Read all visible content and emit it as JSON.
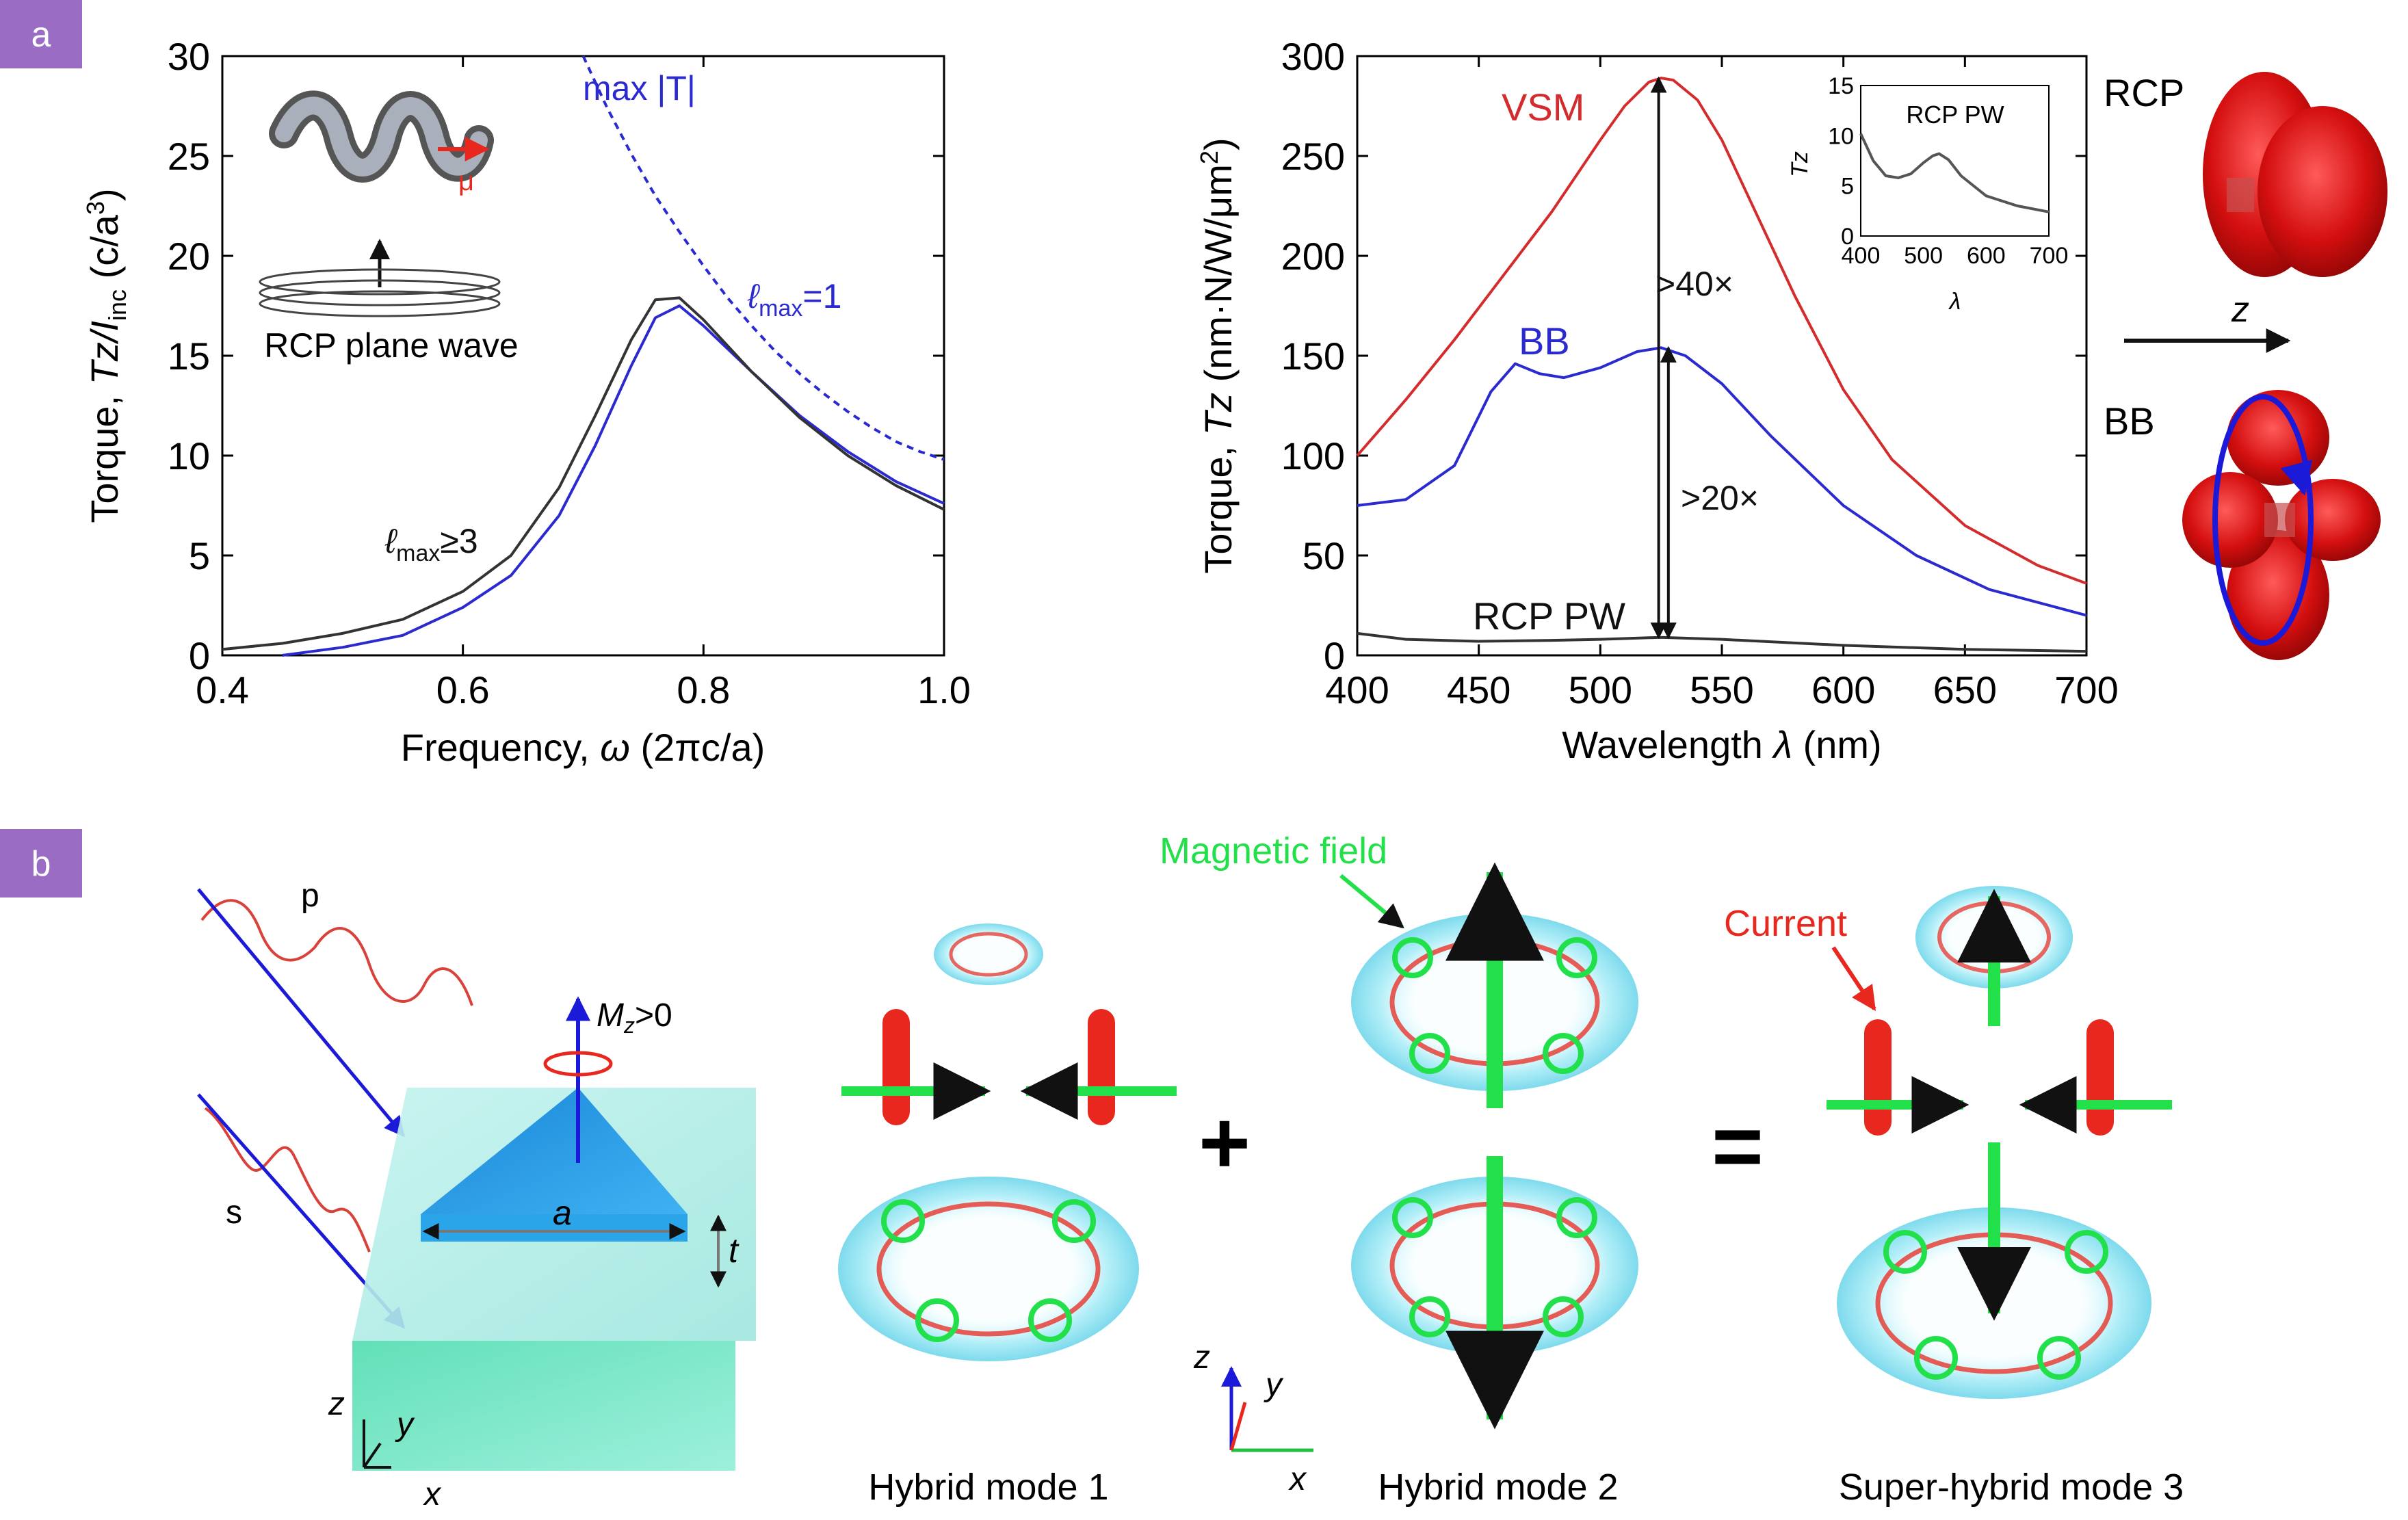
{
  "panels": {
    "a_label": "a",
    "b_label": "b",
    "badge_color": "#9b6cc4"
  },
  "chart_data": [
    {
      "type": "line",
      "xlabel_prefix": "Frequency, ",
      "xlabel_symbol": "ω",
      "xlabel_suffix": " (2πc/a)",
      "ylabel_prefix": "Torque, ",
      "ylabel_symbol": "Tz/I",
      "ylabel_sub": "inc",
      "ylabel_suffix": " (c/a",
      "ylabel_sup": "3",
      "ylabel_close": ")",
      "xlim": [
        0.4,
        1.0
      ],
      "ylim": [
        0,
        30
      ],
      "xticks": [
        0.4,
        0.6,
        0.8,
        1.0
      ],
      "xtick_labels": [
        "0.4",
        "0.6",
        "0.8",
        "1.0"
      ],
      "yticks": [
        0,
        5,
        10,
        15,
        20,
        25,
        30
      ],
      "ytick_labels": [
        "0",
        "5",
        "10",
        "15",
        "20",
        "25",
        "30"
      ],
      "grid": false,
      "series": [
        {
          "name": "max |T|",
          "style": "dashed",
          "color": "#2a2ad0",
          "x": [
            0.7,
            0.72,
            0.74,
            0.76,
            0.78,
            0.8,
            0.82,
            0.84,
            0.86,
            0.88,
            0.9,
            0.92,
            0.94,
            0.96,
            0.98,
            1.0
          ],
          "y": [
            30.0,
            27.4,
            25.1,
            23.0,
            21.2,
            19.5,
            17.9,
            16.5,
            15.2,
            14.1,
            13.1,
            12.2,
            11.4,
            10.7,
            10.2,
            9.8
          ]
        },
        {
          "name": "ℓmax=1",
          "style": "solid",
          "color": "#2a2ad0",
          "x": [
            0.45,
            0.5,
            0.55,
            0.6,
            0.64,
            0.68,
            0.71,
            0.74,
            0.76,
            0.78,
            0.8,
            0.84,
            0.88,
            0.92,
            0.96,
            1.0
          ],
          "y": [
            0.0,
            0.4,
            1.0,
            2.4,
            4.0,
            7.0,
            10.5,
            14.5,
            16.9,
            17.5,
            16.5,
            14.2,
            12.0,
            10.2,
            8.7,
            7.6
          ]
        },
        {
          "name": "ℓmax≥3",
          "style": "solid",
          "color": "#333333",
          "x": [
            0.4,
            0.45,
            0.5,
            0.55,
            0.6,
            0.64,
            0.68,
            0.71,
            0.74,
            0.76,
            0.78,
            0.8,
            0.84,
            0.88,
            0.92,
            0.96,
            1.0
          ],
          "y": [
            0.3,
            0.6,
            1.1,
            1.8,
            3.2,
            5.0,
            8.4,
            12.0,
            15.8,
            17.8,
            17.9,
            16.8,
            14.2,
            11.9,
            10.0,
            8.5,
            7.3
          ]
        }
      ],
      "annotations": {
        "max_t": "max |T|",
        "lmax1_sym": "ℓ",
        "lmax1_sub": "max",
        "lmax1_val": "=1",
        "lmax3_sym": "ℓ",
        "lmax3_sub": "max",
        "lmax3_val": "≥3",
        "inset_text": "RCP plane wave",
        "mu": "μ"
      }
    },
    {
      "type": "line",
      "xlabel_prefix": "Wavelength ",
      "xlabel_symbol": "λ",
      "xlabel_suffix": " (nm)",
      "ylabel_prefix": "Torque, ",
      "ylabel_symbol": "Tz",
      "ylabel_suffix": " (nm·N/W/μm",
      "ylabel_sup": "2",
      "ylabel_close": ")",
      "xlim": [
        400,
        700
      ],
      "ylim": [
        0,
        300
      ],
      "xticks": [
        400,
        450,
        500,
        550,
        600,
        650,
        700
      ],
      "xtick_labels": [
        "400",
        "450",
        "500",
        "550",
        "600",
        "650",
        "700"
      ],
      "yticks": [
        0,
        50,
        100,
        150,
        200,
        250,
        300
      ],
      "ytick_labels": [
        "0",
        "50",
        "100",
        "150",
        "200",
        "250",
        "300"
      ],
      "grid": false,
      "series": [
        {
          "name": "VSM",
          "color": "#d42c2c",
          "x": [
            400,
            420,
            440,
            460,
            480,
            500,
            510,
            520,
            525,
            530,
            540,
            550,
            560,
            580,
            600,
            620,
            650,
            680,
            700
          ],
          "y": [
            100,
            128,
            158,
            190,
            222,
            258,
            275,
            287,
            289,
            288,
            278,
            258,
            232,
            180,
            133,
            98,
            65,
            45,
            36
          ]
        },
        {
          "name": "BB",
          "color": "#2a2ad0",
          "x": [
            400,
            420,
            440,
            455,
            465,
            475,
            485,
            500,
            515,
            525,
            535,
            550,
            570,
            600,
            630,
            660,
            700
          ],
          "y": [
            75,
            78,
            95,
            132,
            146,
            141,
            139,
            144,
            152,
            154,
            150,
            136,
            110,
            75,
            50,
            33,
            20
          ]
        },
        {
          "name": "RCP PW",
          "color": "#333333",
          "x": [
            400,
            420,
            450,
            480,
            500,
            525,
            550,
            600,
            650,
            700
          ],
          "y": [
            11,
            8,
            7,
            7.5,
            8,
            9,
            8,
            5,
            3,
            2
          ]
        }
      ],
      "annotations": {
        "vsm": "VSM",
        "bb": "BB",
        "rcp_pw": "RCP PW",
        "gt40": ">40×",
        "gt20": ">20×"
      },
      "inset": {
        "ylabel": "Tz",
        "xlabel": "λ",
        "text": "RCP   PW",
        "xlim": [
          400,
          700
        ],
        "ylim": [
          0,
          15
        ],
        "xtick_labels": [
          "400",
          "500",
          "600",
          "700"
        ],
        "ytick_labels": [
          "0",
          "5",
          "10",
          "15"
        ],
        "x": [
          400,
          420,
          440,
          460,
          480,
          500,
          515,
          525,
          540,
          560,
          600,
          650,
          700
        ],
        "y": [
          10.2,
          7.5,
          6.0,
          5.8,
          6.2,
          7.3,
          8.0,
          8.2,
          7.6,
          6.0,
          4.0,
          3.0,
          2.4
        ]
      }
    }
  ],
  "right_panel": {
    "rcp": "RCP",
    "bb": "BB",
    "z": "z"
  },
  "panel_b": {
    "p": "p",
    "s": "s",
    "mz": "M",
    "mz_sub": "z",
    "mz_val": ">0",
    "a": "a",
    "t": "t",
    "axis_z": "z",
    "axis_y": "y",
    "axis_x": "x",
    "mode1": "Hybrid mode 1",
    "mode2": "Hybrid mode 2",
    "mode3": "Super-hybrid mode 3",
    "magnetic": "Magnetic field",
    "current": "Current",
    "plus": "+",
    "equals": "=",
    "mag_color": "#22e04a",
    "cur_color": "#e8281e"
  }
}
